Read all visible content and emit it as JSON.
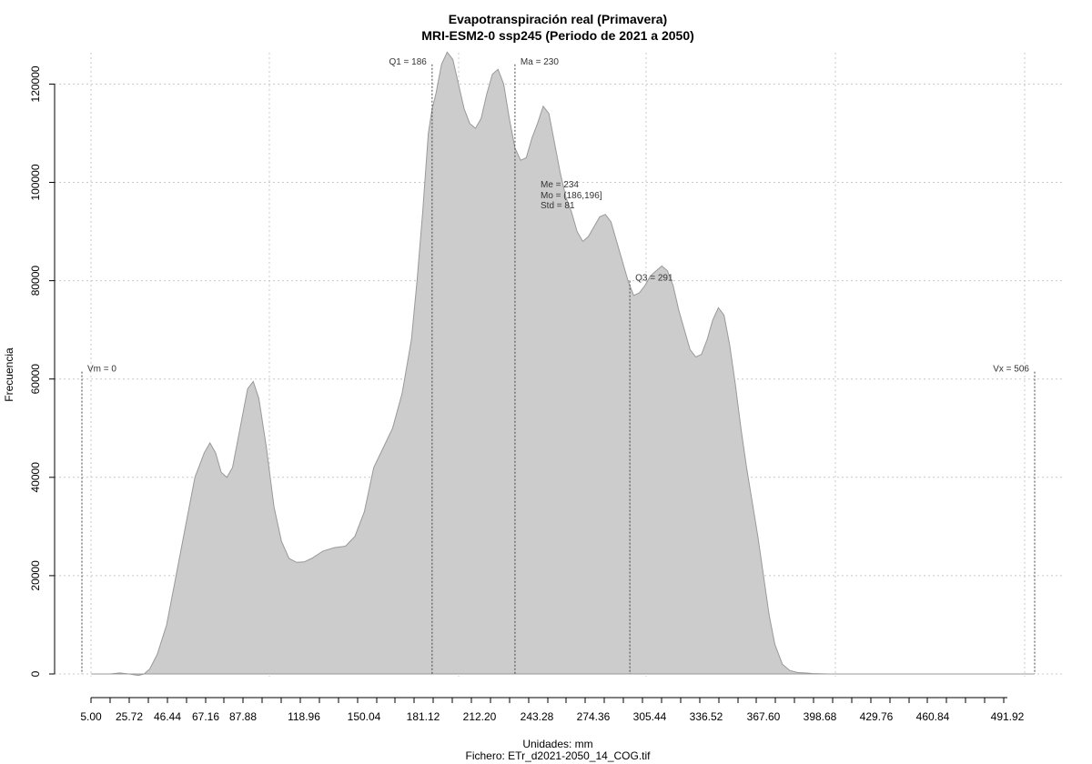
{
  "chart_data": {
    "type": "area",
    "title": "Evapotranspiración real (Primavera)",
    "subtitle": "MRI-ESM2-0 ssp245 (Periodo de 2021 a 2050)",
    "xlabel": "Unidades: mm",
    "ylabel": "Frecuencia",
    "footer": "Fichero: ETr_d2021-2050_14_COG.tif",
    "xlim": [
      0,
      506
    ],
    "ylim": [
      0,
      126000
    ],
    "x_ticks": [
      5.0,
      25.72,
      46.44,
      67.16,
      87.88,
      118.96,
      150.04,
      181.12,
      212.2,
      243.28,
      274.36,
      305.44,
      336.52,
      367.6,
      398.68,
      429.76,
      460.84,
      491.92
    ],
    "x_tick_labels": [
      "5.00",
      "25.72",
      "46.44",
      "67.16",
      "87.88",
      "118.96",
      "150.04",
      "181.12",
      "212.20",
      "243.28",
      "274.36",
      "305.44",
      "336.52",
      "367.60",
      "398.68",
      "429.76",
      "460.84",
      "491.92"
    ],
    "y_ticks": [
      0,
      20000,
      40000,
      60000,
      80000,
      100000,
      120000
    ],
    "y_tick_labels": [
      "0",
      "20000",
      "40000",
      "60000",
      "80000",
      "100000",
      "120000"
    ],
    "grid": true,
    "fill_color": "#cccccc",
    "line_color": "#999999",
    "series": [
      {
        "x": [
          5,
          15,
          20,
          25,
          30,
          33,
          36,
          40,
          45,
          50,
          55,
          60,
          65,
          68,
          71,
          74,
          77,
          80,
          84,
          88,
          91,
          94,
          98,
          102,
          106,
          110,
          114,
          118,
          122,
          128,
          134,
          140,
          145,
          150,
          155,
          160,
          165,
          170,
          175,
          178,
          181,
          184,
          186,
          188,
          191,
          194,
          197,
          200,
          203,
          206,
          209,
          212,
          215,
          218,
          221,
          224,
          227,
          230,
          233,
          236,
          239,
          242,
          245,
          248,
          251,
          254,
          257,
          260,
          263,
          266,
          269,
          272,
          275,
          278,
          281,
          284,
          287,
          290,
          293,
          296,
          299,
          302,
          305,
          308,
          311,
          314,
          317,
          320,
          323,
          326,
          329,
          332,
          335,
          338,
          341,
          344,
          347,
          350,
          353,
          356,
          359,
          362,
          365,
          368,
          372,
          376,
          380,
          384,
          388,
          392,
          396,
          400,
          405,
          415,
          430,
          450,
          480,
          500,
          506
        ],
        "y": [
          0,
          0,
          200,
          0,
          -300,
          0,
          1000,
          4000,
          10000,
          20000,
          30000,
          40000,
          45000,
          47000,
          45000,
          41000,
          40000,
          42000,
          50000,
          58000,
          59500,
          56000,
          46000,
          34000,
          27000,
          23500,
          22700,
          22800,
          23500,
          25000,
          25700,
          26000,
          28000,
          33000,
          42000,
          46000,
          50000,
          57000,
          68000,
          80000,
          94000,
          110000,
          115000,
          118000,
          124000,
          126500,
          125000,
          120000,
          115000,
          112000,
          111000,
          113000,
          118000,
          122000,
          123000,
          120000,
          113000,
          107000,
          104500,
          105000,
          109000,
          112000,
          115500,
          114000,
          108000,
          102000,
          97000,
          94000,
          90000,
          88000,
          89000,
          91000,
          93000,
          93500,
          92000,
          88000,
          84000,
          80000,
          77000,
          77500,
          79000,
          81000,
          82000,
          83000,
          82000,
          79000,
          74000,
          70000,
          66000,
          64500,
          65000,
          68000,
          72000,
          74500,
          73000,
          67000,
          59000,
          50000,
          42000,
          35000,
          28000,
          20000,
          12000,
          6000,
          2000,
          700,
          300,
          200,
          100,
          50,
          0,
          0,
          0,
          0,
          0,
          0,
          0,
          0,
          0
        ]
      }
    ],
    "markers": [
      {
        "x": 0,
        "y_top": 61500,
        "label": "Vm = 0",
        "label_side": "right"
      },
      {
        "x": 186,
        "y_top": 124000,
        "label": "Q1 = 186",
        "label_side": "left"
      },
      {
        "x": 230,
        "y_top": 124000,
        "label": "Ma = 230",
        "label_side": "right"
      },
      {
        "x": 291,
        "y_top": 80000,
        "label": "Q3 = 291",
        "label_side": "right"
      },
      {
        "x": 506,
        "y_top": 61500,
        "label": "Vx = 506",
        "label_side": "left"
      }
    ],
    "stats_block": [
      "Me = 234",
      "Mo = (186,196]",
      "Std = 81"
    ]
  }
}
